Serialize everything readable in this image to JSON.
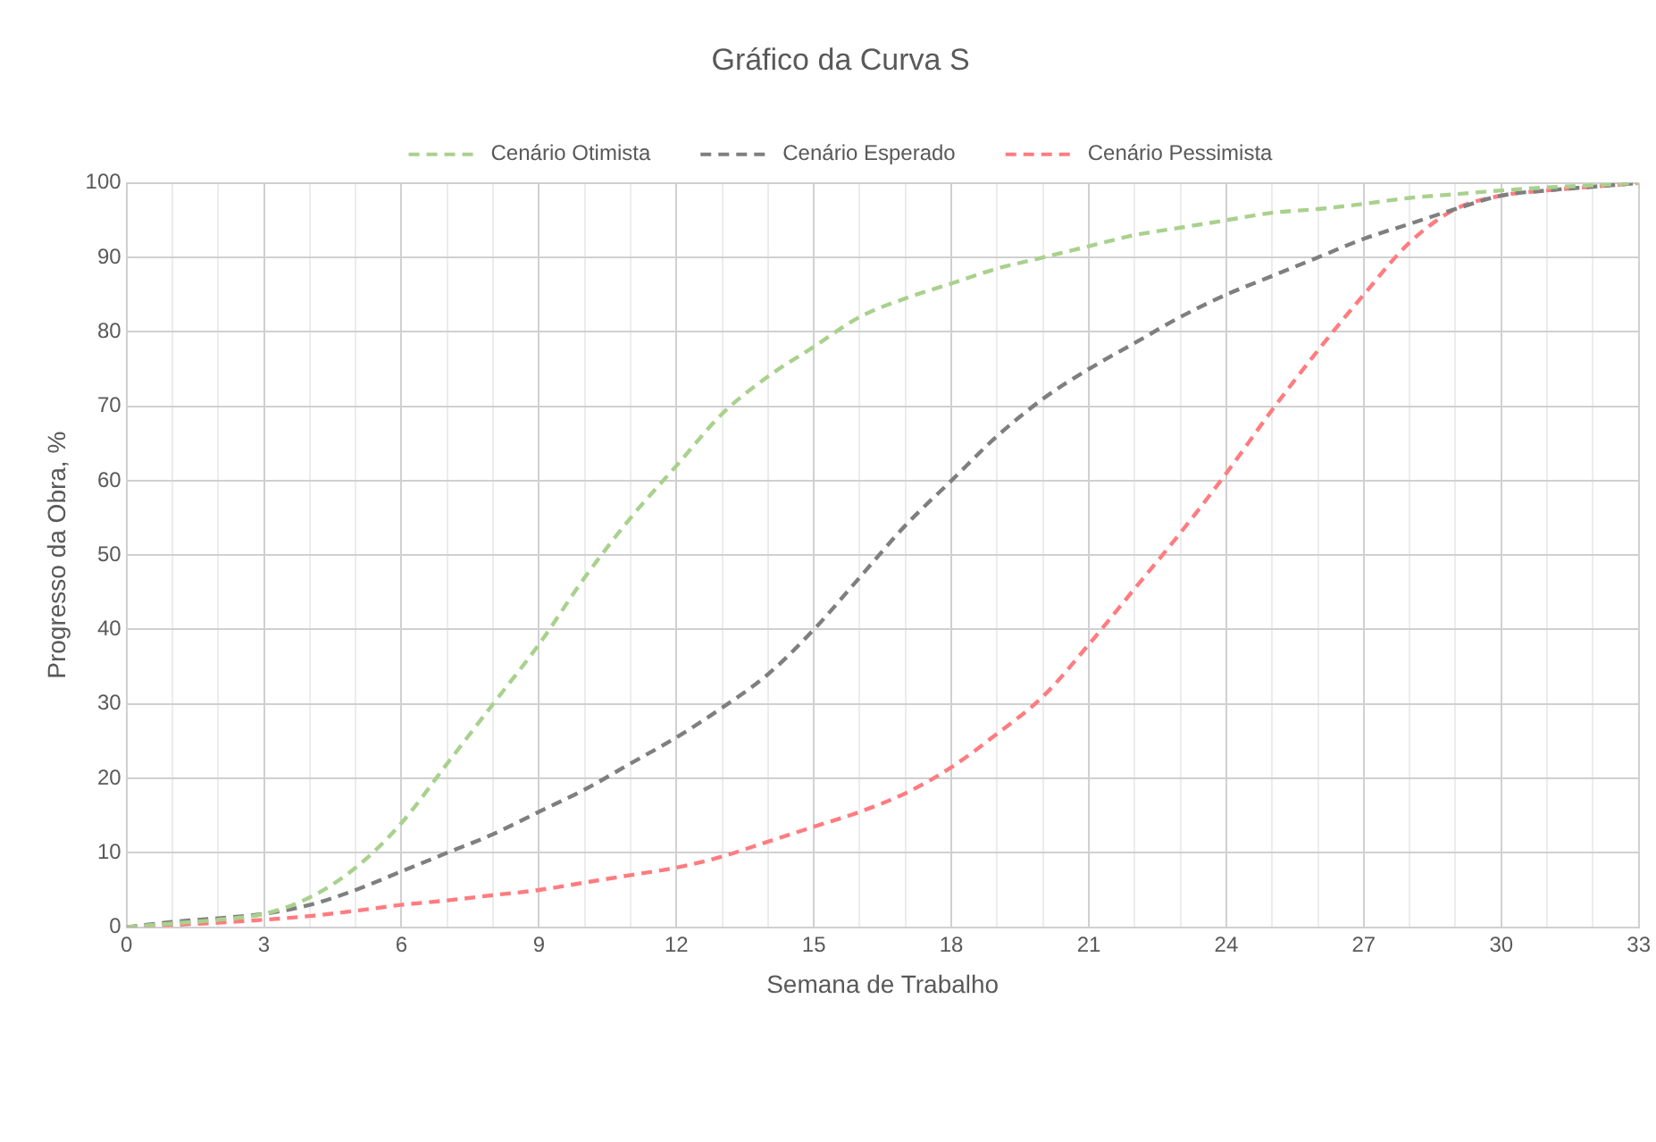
{
  "chart_data": {
    "type": "line",
    "title": "Gráfico da Curva S",
    "xlabel": "Semana de Trabalho",
    "ylabel": "Progresso da Obra, %",
    "x": [
      0,
      1,
      2,
      3,
      4,
      5,
      6,
      7,
      8,
      9,
      10,
      11,
      12,
      13,
      14,
      15,
      16,
      17,
      18,
      19,
      20,
      21,
      22,
      23,
      24,
      25,
      26,
      27,
      28,
      29,
      30,
      31,
      32,
      33
    ],
    "series": [
      {
        "name": "Cenário Otimista",
        "color": "#a9d18e",
        "values": [
          0,
          0.5,
          1,
          1.8,
          4,
          8,
          14,
          22,
          30,
          38,
          47,
          55,
          62,
          69,
          74,
          78,
          82,
          84.5,
          86.5,
          88.5,
          90,
          91.5,
          93,
          94,
          95,
          96,
          96.5,
          97.2,
          98,
          98.5,
          99,
          99.4,
          99.7,
          100
        ]
      },
      {
        "name": "Cenário Esperado",
        "color": "#7f7f7f",
        "values": [
          0,
          0.7,
          1.2,
          1.8,
          3,
          5,
          7.5,
          10,
          12.5,
          15.5,
          18.5,
          22,
          25.5,
          29.5,
          34,
          40,
          47,
          54,
          60,
          66,
          71,
          75,
          78.5,
          82,
          85,
          87.5,
          90,
          92.5,
          94.5,
          96.5,
          98.3,
          99,
          99.5,
          100
        ]
      },
      {
        "name": "Cenário Pessimista",
        "color": "#ff7c80",
        "values": [
          0,
          0.3,
          0.6,
          1,
          1.5,
          2.2,
          3,
          3.6,
          4.3,
          5,
          6,
          7,
          8,
          9.5,
          11.5,
          13.5,
          15.5,
          18,
          21.5,
          26,
          31,
          38,
          45.5,
          53,
          61,
          69.5,
          77.5,
          85,
          92,
          96.5,
          98.3,
          99,
          99.5,
          100
        ]
      }
    ],
    "xlim": [
      0,
      33
    ],
    "xticks": [
      0,
      {
        "value": 1,
        "label": null
      },
      {
        "value": 2,
        "label": null
      },
      3,
      {
        "value": 4,
        "label": null
      },
      {
        "value": 5,
        "label": null
      },
      6,
      {
        "value": 7,
        "label": null
      },
      {
        "value": 8,
        "label": null
      },
      9,
      {
        "value": 10,
        "label": null
      },
      {
        "value": 11,
        "label": null
      },
      12,
      {
        "value": 13,
        "label": null
      },
      {
        "value": 14,
        "label": null
      },
      15,
      {
        "value": 16,
        "label": null
      },
      {
        "value": 17,
        "label": null
      },
      18,
      {
        "value": 19,
        "label": null
      },
      {
        "value": 20,
        "label": null
      },
      21,
      {
        "value": 22,
        "label": null
      },
      {
        "value": 23,
        "label": null
      },
      24,
      {
        "value": 25,
        "label": null
      },
      {
        "value": 26,
        "label": null
      },
      27,
      {
        "value": 28,
        "label": null
      },
      {
        "value": 29,
        "label": null
      },
      30,
      {
        "value": 31,
        "label": null
      },
      {
        "value": 32,
        "label": null
      },
      33
    ],
    "ylim": [
      0,
      100
    ],
    "yticks": [
      0,
      10,
      20,
      30,
      40,
      50,
      60,
      70,
      80,
      90,
      100
    ],
    "grid": true,
    "legend": "top",
    "marker": "none",
    "line_style": "dashed"
  }
}
